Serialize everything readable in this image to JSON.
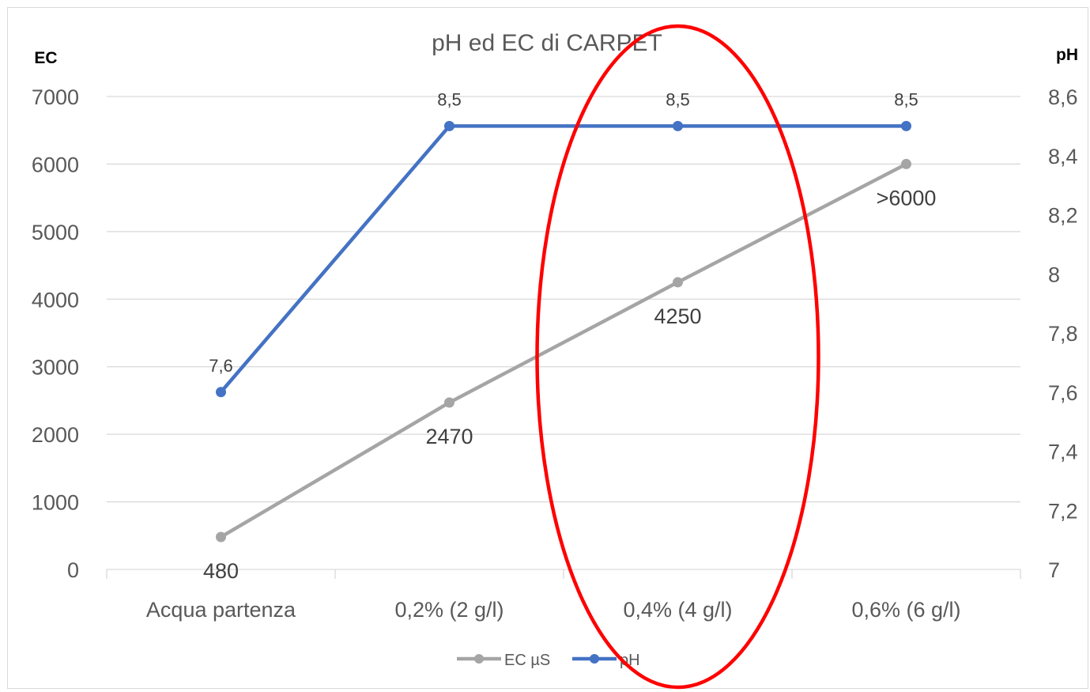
{
  "chart_data": {
    "type": "line",
    "title": "pH ed EC di CARPET",
    "y_left_label": "EC",
    "y_right_label": "pH",
    "categories": [
      "Acqua partenza",
      "0,2% (2 g/l)",
      "0,4% (4 g/l)",
      "0,6% (6 g/l)"
    ],
    "y_left_ticks": [
      "0",
      "1000",
      "2000",
      "3000",
      "4000",
      "5000",
      "6000",
      "7000"
    ],
    "y_right_ticks": [
      "7",
      "7,2",
      "7,4",
      "7,6",
      "7,8",
      "8",
      "8,2",
      "8,4",
      "8,6"
    ],
    "y_left_range": [
      0,
      7000
    ],
    "y_right_range": [
      7,
      8.6
    ],
    "grid": true,
    "legend_position": "bottom",
    "series": [
      {
        "name": "EC µS",
        "axis": "left",
        "color": "#a5a5a5",
        "values": [
          480,
          2470,
          4250,
          6000
        ],
        "labels": [
          "480",
          "2470",
          "4250",
          ">6000"
        ]
      },
      {
        "name": "pH",
        "axis": "right",
        "color": "#4472c4",
        "values": [
          7.6,
          8.5,
          8.5,
          8.5
        ],
        "labels": [
          "7,6",
          "8,5",
          "8,5",
          "8,5"
        ]
      }
    ],
    "annotation": {
      "shape": "ellipse",
      "color": "#ff0000",
      "around_category": "0,4% (4 g/l)"
    }
  }
}
